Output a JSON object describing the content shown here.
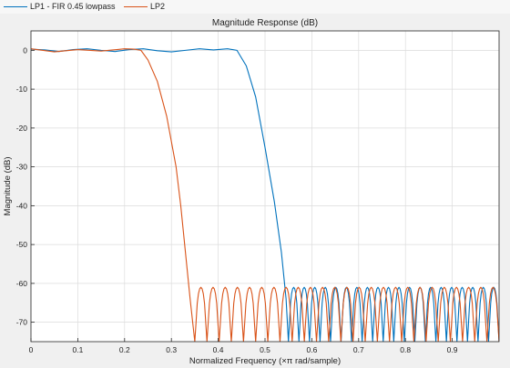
{
  "legend": {
    "items": [
      {
        "label": "LP1 - FIR 0.45 lowpass",
        "color": "#0072bd"
      },
      {
        "label": "LP2",
        "color": "#d95319"
      }
    ]
  },
  "chart_data": {
    "type": "line",
    "title": "Magnitude Response (dB)",
    "xlabel": "Normalized Frequency (×π rad/sample)",
    "ylabel": "Magnitude (dB)",
    "xlim": [
      0,
      1
    ],
    "ylim": [
      -75,
      5
    ],
    "xticks": [
      0,
      0.1,
      0.2,
      0.3,
      0.4,
      0.5,
      0.6,
      0.7,
      0.8,
      0.9
    ],
    "xtick_labels": [
      "0",
      "0.1",
      "0.2",
      "0.3",
      "0.4",
      "0.5",
      "0.6",
      "0.7",
      "0.8",
      "0.9"
    ],
    "yticks": [
      0,
      -10,
      -20,
      -30,
      -40,
      -50,
      -60,
      -70
    ],
    "ytick_labels": [
      "0",
      "-10",
      "-20",
      "-30",
      "-40",
      "-50",
      "-60",
      "-70"
    ],
    "grid": true,
    "series": [
      {
        "name": "LP1 - FIR 0.45 lowpass",
        "color": "#0072bd",
        "x": [
          0,
          0.03,
          0.06,
          0.09,
          0.12,
          0.15,
          0.18,
          0.21,
          0.24,
          0.27,
          0.3,
          0.33,
          0.36,
          0.39,
          0.42,
          0.44,
          0.46,
          0.48,
          0.5,
          0.52,
          0.535,
          0.545,
          0.55
        ],
        "y": [
          0.3,
          0.1,
          -0.3,
          0.2,
          0.4,
          0.0,
          -0.3,
          0.2,
          0.4,
          -0.1,
          -0.4,
          0.0,
          0.4,
          0.1,
          0.4,
          0.0,
          -4,
          -12,
          -25,
          -39,
          -52,
          -64,
          -75
        ]
      },
      {
        "name": "LP2",
        "color": "#d95319",
        "x": [
          0,
          0.05,
          0.1,
          0.15,
          0.2,
          0.22,
          0.235,
          0.25,
          0.27,
          0.29,
          0.31,
          0.32,
          0.33,
          0.34,
          0.35
        ],
        "y": [
          0.4,
          -0.4,
          0.2,
          -0.2,
          0.4,
          0.3,
          0.0,
          -2.5,
          -8,
          -17,
          -30,
          -40,
          -52,
          -64,
          -75
        ]
      }
    ],
    "stopband": [
      {
        "series": 0,
        "start": 0.55,
        "end": 1.0,
        "lobes": 20,
        "peak": -61
      },
      {
        "series": 1,
        "start": 0.35,
        "end": 1.0,
        "lobes": 25,
        "peak": -61
      }
    ]
  }
}
